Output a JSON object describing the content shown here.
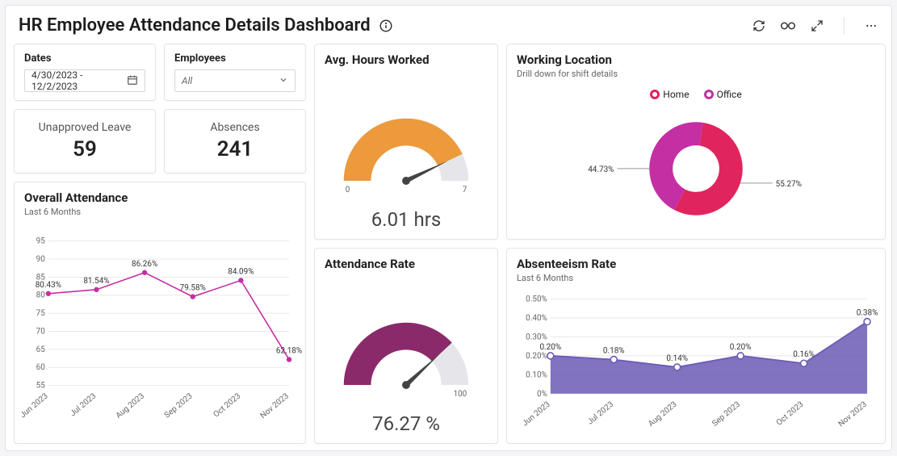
{
  "header": {
    "title": "HR Employee Attendance Details Dashboard"
  },
  "filters": {
    "dates_label": "Dates",
    "dates_value": "4/30/2023 - 12/2/2023",
    "employees_label": "Employees",
    "employees_value": "All"
  },
  "kpis": {
    "unapproved_leave_label": "Unapproved Leave",
    "unapproved_leave_value": "59",
    "absences_label": "Absences",
    "absences_value": "241"
  },
  "overall_attendance": {
    "title": "Overall Attendance",
    "subtitle": "Last 6 Months",
    "type": "line",
    "x_labels": [
      "Jun 2023",
      "Jul 2023",
      "Aug 2023",
      "Sep 2023",
      "Oct 2023",
      "Nov 2023"
    ],
    "values": [
      80.43,
      81.54,
      86.26,
      79.58,
      84.09,
      62.18
    ],
    "point_labels": [
      "80.43%",
      "81.54%",
      "86.26%",
      "79.58%",
      "84.09%",
      "62.18%"
    ],
    "ylim": [
      55,
      95
    ],
    "ytick_step": 5,
    "line_color": "#c42fa3",
    "marker_color": "#c42fa3",
    "grid_color": "#e8e8ec",
    "background_color": "#ffffff",
    "label_fontsize": 10
  },
  "avg_hours": {
    "title": "Avg. Hours Worked",
    "type": "gauge",
    "value": 6.01,
    "display": "6.01 hrs",
    "min": 0,
    "max": 7,
    "min_label": "0",
    "max_label": "7",
    "fill_color": "#ec9a3c",
    "track_color": "#e6e6ea",
    "needle_color": "#444"
  },
  "attendance_rate": {
    "title": "Attendance Rate",
    "type": "gauge",
    "value": 76.27,
    "display": "76.27 %",
    "min": 0,
    "max": 100,
    "max_label": "100",
    "fill_color": "#8b2a6a",
    "track_color": "#e6e6ea",
    "needle_color": "#444"
  },
  "working_location": {
    "title": "Working Location",
    "subtitle": "Drill down for shift details",
    "type": "donut",
    "legend": [
      {
        "label": "Home",
        "color": "#e0245e"
      },
      {
        "label": "Office",
        "color": "#c42fa3"
      }
    ],
    "slices": [
      {
        "label": "55.27%",
        "value": 55.27,
        "color": "#e0245e"
      },
      {
        "label": "44.73%",
        "value": 44.73,
        "color": "#c42fa3"
      }
    ],
    "inner_radius_ratio": 0.5,
    "background_color": "#ffffff"
  },
  "absenteeism": {
    "title": "Absenteeism Rate",
    "subtitle": "Last 6 Months",
    "type": "area",
    "x_labels": [
      "Jun 2023",
      "Jul 2023",
      "Aug 2023",
      "Sep 2023",
      "Oct 2023",
      "Nov 2023"
    ],
    "values": [
      0.2,
      0.18,
      0.14,
      0.2,
      0.16,
      0.38
    ],
    "point_labels": [
      "0.20%",
      "0.18%",
      "0.14%",
      "0.20%",
      "0.16%",
      "0.38%"
    ],
    "ylim": [
      0,
      0.5
    ],
    "ytick_step": 0.1,
    "y_tick_labels": [
      "0%",
      "0.10%",
      "0.20%",
      "0.30%",
      "0.40%",
      "0.50%"
    ],
    "fill_color": "#6b5bb5",
    "line_color": "#6b5bb5",
    "marker_fill": "#ffffff",
    "marker_stroke": "#6b5bb5",
    "grid_color": "#e8e8ec",
    "background_color": "#ffffff"
  }
}
